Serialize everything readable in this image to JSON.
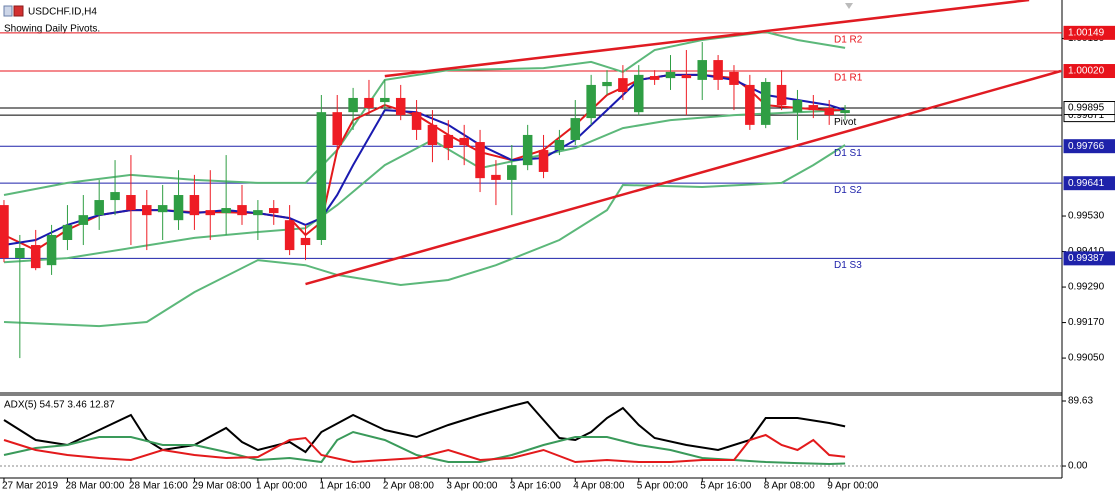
{
  "header": {
    "symbol": "USDCHF.ID,H4",
    "note": "Showing Daily Pivots."
  },
  "chart_data": [
    {
      "type": "candlestick",
      "categories": [
        "27 Mar 2019",
        null,
        null,
        null,
        "28 Mar 00:00",
        null,
        null,
        null,
        "28 Mar 16:00",
        null,
        null,
        null,
        "29 Mar 08:00",
        null,
        null,
        null,
        "1 Apr 00:00",
        null,
        null,
        null,
        "1 Apr 16:00",
        null,
        null,
        null,
        "2 Apr 08:00",
        null,
        null,
        null,
        "3 Apr 00:00",
        null,
        null,
        null,
        "3 Apr 16:00",
        null,
        null,
        null,
        "4 Apr 08:00",
        null,
        null,
        null,
        "5 Apr 00:00",
        null,
        null,
        null,
        "5 Apr 16:00",
        null,
        null,
        null,
        "8 Apr 08:00",
        null,
        null,
        null,
        "9 Apr 00:00",
        null
      ],
      "open": [
        0.99567,
        0.99388,
        0.99432,
        0.99364,
        0.99449,
        0.995,
        0.99533,
        0.99584,
        0.99601,
        0.99567,
        0.99543,
        0.99516,
        0.99601,
        0.9955,
        0.9954,
        0.99567,
        0.99533,
        0.99557,
        0.99516,
        0.99456,
        0.99449,
        0.99881,
        0.99881,
        0.99929,
        0.99915,
        0.99929,
        0.99881,
        0.99838,
        0.99804,
        0.99794,
        0.9978,
        0.99669,
        0.99652,
        0.99702,
        0.99753,
        0.99753,
        0.99787,
        0.99861,
        0.99969,
        0.99996,
        0.99881,
        1.00003,
        0.99996,
        1.00007,
        0.9999,
        1.00057,
        1.00017,
        0.99973,
        0.99838,
        0.99973,
        0.99881,
        0.99905,
        0.99895,
        0.99878
      ],
      "high": [
        0.99584,
        0.99466,
        0.99483,
        0.995,
        0.99567,
        0.99601,
        0.99652,
        0.99719,
        0.99736,
        0.99618,
        0.99635,
        0.99685,
        0.99669,
        0.99685,
        0.99736,
        0.99635,
        0.99584,
        0.99584,
        0.99567,
        0.995,
        0.99939,
        0.99939,
        0.99963,
        0.9999,
        0.9999,
        0.99973,
        0.99922,
        0.99888,
        0.99854,
        0.99838,
        0.99821,
        0.99719,
        0.9977,
        0.99838,
        0.99804,
        0.99821,
        0.99922,
        1.00007,
        1.00023,
        1.0004,
        1.0004,
        1.00023,
        1.00074,
        1.00091,
        1.00118,
        1.00074,
        1.0004,
        1.00007,
        0.99996,
        1.00023,
        0.99956,
        0.99939,
        0.99922,
        0.99905
      ],
      "low": [
        0.99374,
        0.9905,
        0.99347,
        0.99331,
        0.99415,
        0.99432,
        0.99483,
        0.99533,
        0.99432,
        0.99415,
        0.99449,
        0.99483,
        0.99483,
        0.99449,
        0.99466,
        0.995,
        0.99449,
        0.995,
        0.99398,
        0.99381,
        0.99432,
        0.99753,
        0.99821,
        0.99871,
        0.99888,
        0.99854,
        0.99787,
        0.99712,
        0.99719,
        0.99702,
        0.99611,
        0.99567,
        0.99533,
        0.99685,
        0.99658,
        0.99736,
        0.9977,
        0.99838,
        0.99939,
        0.99922,
        0.99871,
        0.99973,
        0.99956,
        0.99871,
        0.99922,
        0.99956,
        0.99888,
        0.99821,
        0.99827,
        0.99888,
        0.99787,
        0.99861,
        0.99838,
        0.99854
      ],
      "close": [
        0.99388,
        0.99422,
        0.99354,
        0.99466,
        0.995,
        0.99533,
        0.99584,
        0.99611,
        0.9955,
        0.99533,
        0.99567,
        0.99601,
        0.99533,
        0.99533,
        0.99557,
        0.99533,
        0.9955,
        0.9954,
        0.99415,
        0.99432,
        0.99881,
        0.9977,
        0.99929,
        0.99895,
        0.99929,
        0.99871,
        0.99821,
        0.9977,
        0.9976,
        0.9977,
        0.99658,
        0.99652,
        0.99702,
        0.99804,
        0.99679,
        0.99787,
        0.99861,
        0.99973,
        0.99983,
        0.99949,
        1.00007,
        0.9999,
        1.00017,
        0.99996,
        1.00057,
        0.9999,
        0.99973,
        0.99838,
        0.99983,
        0.99905,
        0.99922,
        0.99888,
        0.99871,
        0.99888
      ],
      "up_color": "#2f9e44",
      "down_color": "#ee1c24",
      "xlim": [
        -0.25,
        66.67
      ],
      "ylim": [
        0.98932,
        1.0026
      ],
      "yticks": [
        {
          "value": 0.9905,
          "label": "0.99050"
        },
        {
          "value": 0.9917,
          "label": "0.99170"
        },
        {
          "value": 0.9929,
          "label": "0.99290"
        },
        {
          "value": 0.9941,
          "label": "0.99410"
        },
        {
          "value": 0.9953,
          "label": "0.99530"
        },
        {
          "value": 1.0013,
          "label": "1.00130"
        }
      ],
      "overlays": [
        {
          "color": "#5cb87a",
          "x": [
            0,
            4,
            8,
            12,
            16,
            19,
            21,
            24,
            28,
            34,
            37,
            39,
            41,
            44,
            48,
            50,
            53
          ],
          "values": [
            0.99601,
            0.99642,
            0.99669,
            0.99652,
            0.99642,
            0.99642,
            0.99753,
            0.9999,
            1.00023,
            1.0003,
            1.00051,
            1.00017,
            1.00091,
            1.00125,
            1.00152,
            1.00125,
            1.00098
          ]
        },
        {
          "color": "#5cb87a",
          "x": [
            0,
            4,
            8,
            12,
            16,
            19,
            21,
            24,
            27,
            30,
            33,
            36,
            39,
            42,
            46,
            50,
            53
          ],
          "values": [
            0.99374,
            0.99388,
            0.99422,
            0.99456,
            0.99476,
            0.99489,
            0.99567,
            0.99702,
            0.99787,
            0.99692,
            0.99726,
            0.9976,
            0.99827,
            0.99854,
            0.99871,
            0.99881,
            0.99888
          ]
        },
        {
          "color": "#5cb87a",
          "x": [
            0,
            6,
            9,
            12,
            16,
            19,
            21,
            25,
            28,
            31,
            35,
            38,
            39,
            44,
            49,
            51,
            53
          ],
          "values": [
            0.99172,
            0.99158,
            0.99172,
            0.99273,
            0.99381,
            0.99364,
            0.99331,
            0.99297,
            0.99314,
            0.99364,
            0.99449,
            0.9955,
            0.99635,
            0.99628,
            0.99642,
            0.99702,
            0.9977
          ]
        },
        {
          "color": "#e31a1c",
          "x": [
            0,
            2,
            4,
            6,
            8,
            10,
            12,
            14,
            16,
            18,
            19,
            20,
            21,
            22,
            24,
            26,
            28,
            30,
            32,
            34,
            36,
            38,
            40,
            42,
            44,
            46,
            47,
            48,
            50,
            52,
            53
          ],
          "values": [
            0.99466,
            0.99415,
            0.99483,
            0.99533,
            0.9955,
            0.9955,
            0.99543,
            0.99543,
            0.9954,
            0.99523,
            0.99466,
            0.9951,
            0.99753,
            0.99854,
            0.99905,
            0.99871,
            0.99804,
            0.99746,
            0.99719,
            0.99753,
            0.99838,
            0.99939,
            0.9999,
            1.00007,
            1.00007,
            0.99996,
            0.99956,
            0.99905,
            0.99895,
            0.99888,
            0.99888
          ]
        },
        {
          "color": "#1a1ab0",
          "x": [
            0,
            2,
            4,
            6,
            8,
            10,
            12,
            14,
            16,
            18,
            19,
            20,
            21,
            22,
            24,
            26,
            28,
            30,
            32,
            34,
            36,
            38,
            40,
            42,
            44,
            46,
            48,
            50,
            52,
            53
          ],
          "values": [
            0.99432,
            0.99449,
            0.995,
            0.99533,
            0.9955,
            0.9955,
            0.9954,
            0.9955,
            0.9954,
            0.99523,
            0.995,
            0.99523,
            0.99601,
            0.99702,
            0.99888,
            0.99881,
            0.99838,
            0.9977,
            0.99719,
            0.99726,
            0.99787,
            0.99888,
            0.9999,
            1.00007,
            1.00007,
            0.9999,
            0.99939,
            0.99922,
            0.99905,
            0.99888
          ]
        }
      ],
      "trendlines": [
        {
          "color": "#e01b22",
          "x": [
            24,
            64.6
          ],
          "values": [
            1.00003,
            1.0026
          ]
        },
        {
          "color": "#e01b22",
          "x": [
            19,
            66.6
          ],
          "values": [
            0.993,
            1.0002
          ]
        }
      ],
      "levels": [
        {
          "name": "D1 R2",
          "value": 1.00149,
          "value_label": "1.00149",
          "color": "#e8131b"
        },
        {
          "name": "D1 R1",
          "value": 1.0002,
          "value_label": "1.00020",
          "color": "#e8131b"
        },
        {
          "name": "Pivot",
          "value": 0.99871,
          "value_label": "0.99871",
          "color": "#000000"
        },
        {
          "name": "D1 S1",
          "value": 0.99766,
          "value_label": "0.99766",
          "color": "#1e22aa"
        },
        {
          "name": "D1 S2",
          "value": 0.99641,
          "value_label": "0.99641",
          "color": "#1e22aa"
        },
        {
          "name": "D1 S3",
          "value": 0.99387,
          "value_label": "0.99387",
          "color": "#1e22aa"
        }
      ],
      "current_price": {
        "value": 0.99895,
        "label": "0.99895"
      }
    },
    {
      "type": "line",
      "title": "ADX(5) 54.57 3.46 12.87",
      "ylim": [
        -16.5,
        97.9
      ],
      "yticks": [
        {
          "value": 89.63,
          "label": "89.63"
        },
        {
          "value": 0,
          "label": "0.00"
        }
      ],
      "series": [
        {
          "color": "#000000",
          "x": [
            0,
            2,
            4,
            6,
            8,
            9,
            10,
            12,
            14,
            15,
            16,
            18,
            19,
            20,
            22,
            24,
            26,
            28,
            30,
            32,
            33,
            34,
            35,
            36,
            37,
            38,
            39,
            40,
            41,
            43,
            45,
            47,
            48,
            50,
            52,
            53
          ],
          "values": [
            63.4,
            35.9,
            29,
            49.6,
            70.3,
            35.9,
            22.1,
            29,
            52.4,
            33.1,
            22.1,
            33.1,
            19.3,
            46.9,
            70.3,
            49.6,
            40,
            56.5,
            70.3,
            82.7,
            88.3,
            63.4,
            38.6,
            35.9,
            46.9,
            66.2,
            80,
            56.5,
            38.6,
            29,
            22.1,
            35.9,
            66.2,
            66.2,
            59.3,
            54.57
          ]
        },
        {
          "color": "#3a9a5a",
          "x": [
            0,
            2,
            4,
            6,
            8,
            10,
            12,
            14,
            16,
            18,
            19,
            20,
            21,
            22,
            24,
            26,
            28,
            30,
            32,
            33,
            34,
            36,
            38,
            40,
            42,
            44,
            46,
            48,
            50,
            52,
            53
          ],
          "values": [
            15.2,
            24.8,
            29,
            40,
            40,
            29,
            29,
            19.3,
            8.3,
            11,
            8.3,
            5.5,
            35.9,
            46.9,
            35.9,
            15.2,
            5.5,
            5.5,
            15.2,
            22.1,
            29,
            40,
            40,
            29,
            22.1,
            11,
            8.3,
            5.5,
            4.1,
            2.8,
            3.46
          ]
        },
        {
          "color": "#e31a1c",
          "x": [
            0,
            2,
            4,
            6,
            8,
            10,
            12,
            14,
            16,
            18,
            19,
            20,
            22,
            24,
            26,
            28,
            30,
            32,
            34,
            36,
            38,
            40,
            42,
            44,
            46,
            47,
            48,
            49,
            50,
            51,
            52,
            53
          ],
          "values": [
            35.9,
            22.1,
            15.2,
            11,
            8.3,
            22.1,
            15.2,
            11,
            12.4,
            35.9,
            38.6,
            15.2,
            5.5,
            8.3,
            11,
            22.1,
            8.3,
            11,
            22.1,
            5.5,
            8.3,
            5.5,
            5.5,
            8.3,
            8.3,
            35.9,
            42.7,
            29,
            22.1,
            35.9,
            15.2,
            12.87
          ]
        }
      ]
    }
  ]
}
